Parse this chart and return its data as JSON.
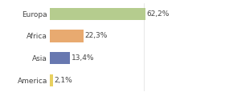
{
  "categories": [
    "Europa",
    "Africa",
    "Asia",
    "America"
  ],
  "values": [
    62.2,
    22.3,
    13.4,
    2.1
  ],
  "labels": [
    "62,2%",
    "22,3%",
    "13,4%",
    "2,1%"
  ],
  "bar_colors": [
    "#b5cc8e",
    "#e8aa70",
    "#6878b0",
    "#e8d060"
  ],
  "background_color": "#ffffff",
  "xlim": [
    0,
    82
  ],
  "label_fontsize": 6.5,
  "tick_fontsize": 6.5,
  "bar_height": 0.55
}
